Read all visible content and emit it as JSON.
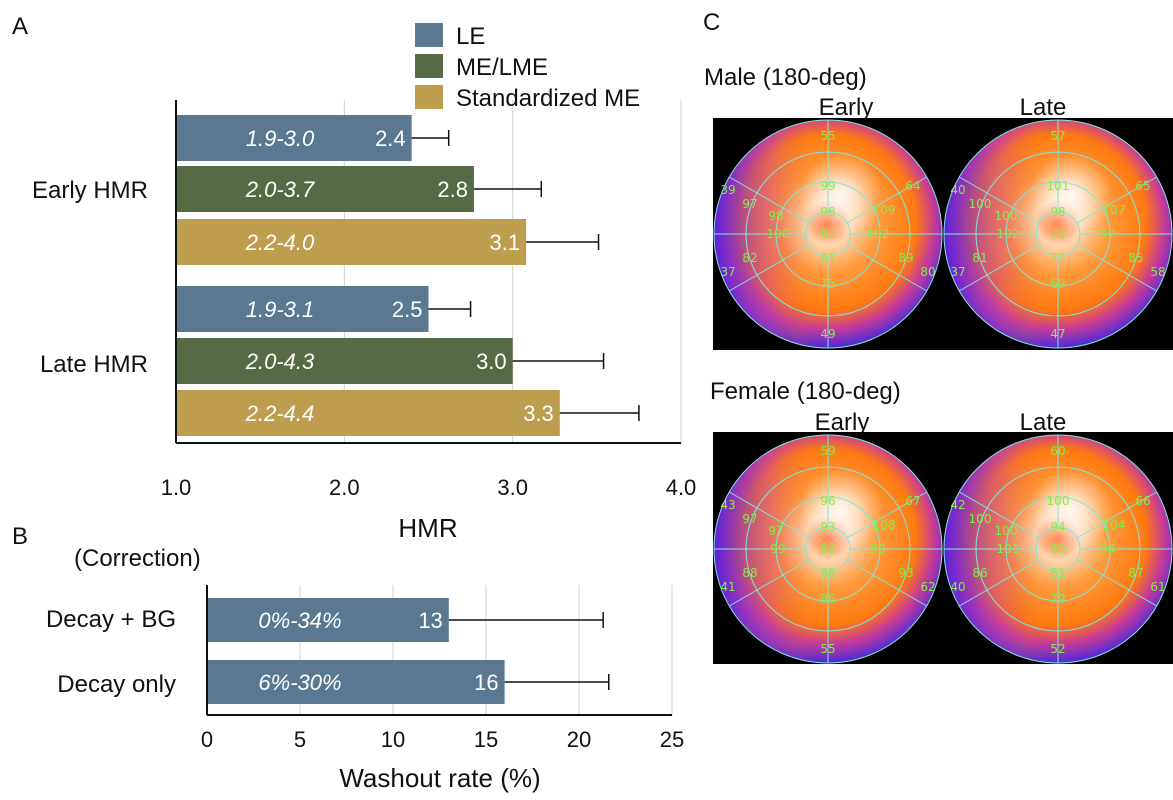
{
  "colors": {
    "le": "#5a7890",
    "me_lme": "#566b45",
    "standardized_me": "#bf9d4e",
    "grid": "#d0d0d0",
    "segment_text": "#7ff04a"
  },
  "panel_labels": {
    "a": "A",
    "b": "B",
    "c": "C"
  },
  "chart_data": [
    {
      "type": "bar",
      "orientation": "horizontal",
      "panel": "A",
      "xlabel": "HMR",
      "xlim": [
        1.0,
        4.0
      ],
      "xticks": [
        "1.0",
        "2.0",
        "3.0",
        "4.0"
      ],
      "xtick_values": [
        1.0,
        2.0,
        3.0,
        4.0
      ],
      "legend": [
        "LE",
        "ME/LME",
        "Standardized ME"
      ],
      "legend_position": "top",
      "grid": "vertical",
      "groups": [
        {
          "label": "Early HMR",
          "bars": [
            {
              "series": "LE",
              "value": 2.4,
              "value_label": "2.4",
              "range_label": "1.9-3.0",
              "error_upper": 2.62
            },
            {
              "series": "ME/LME",
              "value": 2.77,
              "value_label": "2.8",
              "range_label": "2.0-3.7",
              "error_upper": 3.17
            },
            {
              "series": "Standardized ME",
              "value": 3.08,
              "value_label": "3.1",
              "range_label": "2.2-4.0",
              "error_upper": 3.51
            }
          ]
        },
        {
          "label": "Late HMR",
          "bars": [
            {
              "series": "LE",
              "value": 2.5,
              "value_label": "2.5",
              "range_label": "1.9-3.1",
              "error_upper": 2.75
            },
            {
              "series": "ME/LME",
              "value": 3.0,
              "value_label": "3.0",
              "range_label": "2.0-4.3",
              "error_upper": 3.54
            },
            {
              "series": "Standardized ME",
              "value": 3.28,
              "value_label": "3.3",
              "range_label": "2.2-4.4",
              "error_upper": 3.75
            }
          ]
        }
      ]
    },
    {
      "type": "bar",
      "orientation": "horizontal",
      "panel": "B",
      "ylabel": "(Correction)",
      "xlabel": "Washout rate (%)",
      "xlim": [
        0,
        25
      ],
      "xticks": [
        "0",
        "5",
        "10",
        "15",
        "20",
        "25"
      ],
      "xtick_values": [
        0,
        5,
        10,
        15,
        20,
        25
      ],
      "grid": "vertical",
      "bars": [
        {
          "label": "Decay + BG",
          "value": 13,
          "value_label": "13",
          "range_label": "0%-34%",
          "error_upper": 21.3
        },
        {
          "label": "Decay only",
          "value": 16,
          "value_label": "16",
          "range_label": "6%-30%",
          "error_upper": 21.6
        }
      ]
    }
  ],
  "panel_c": {
    "male": {
      "title": "Male (180-deg)",
      "early": {
        "label": "Early",
        "apex": "82",
        "mid": [
          "99",
          "109",
          "102",
          "81",
          "100",
          "98"
        ],
        "inner": [
          "98"
        ],
        "outer": [
          "55",
          "64",
          "89",
          "75",
          "82",
          "97"
        ],
        "rim": [
          "39",
          "80",
          "49",
          "37"
        ]
      },
      "late": {
        "label": "Late",
        "apex": "78",
        "mid": [
          "101",
          "107",
          "97",
          "72",
          "102",
          "100"
        ],
        "inner": [
          "98"
        ],
        "outer": [
          "57",
          "65",
          "85",
          "69",
          "81",
          "100"
        ],
        "rim": [
          "40",
          "58",
          "47",
          "37"
        ]
      }
    },
    "female": {
      "title": "Female (180-deg)",
      "early": {
        "label": "Early",
        "apex": "82",
        "mid": [
          "96",
          "108",
          "99",
          "86",
          "99",
          "97"
        ],
        "inner": [
          "93"
        ],
        "outer": [
          "59",
          "67",
          "93",
          "86",
          "88",
          "97"
        ],
        "rim": [
          "43",
          "62",
          "55",
          "41"
        ]
      },
      "late": {
        "label": "Late",
        "apex": "80",
        "mid": [
          "100",
          "104",
          "94",
          "81",
          "101",
          "100"
        ],
        "inner": [
          "94"
        ],
        "outer": [
          "60",
          "66",
          "87",
          "79",
          "86",
          "100"
        ],
        "rim": [
          "42",
          "61",
          "52",
          "40"
        ]
      }
    }
  }
}
